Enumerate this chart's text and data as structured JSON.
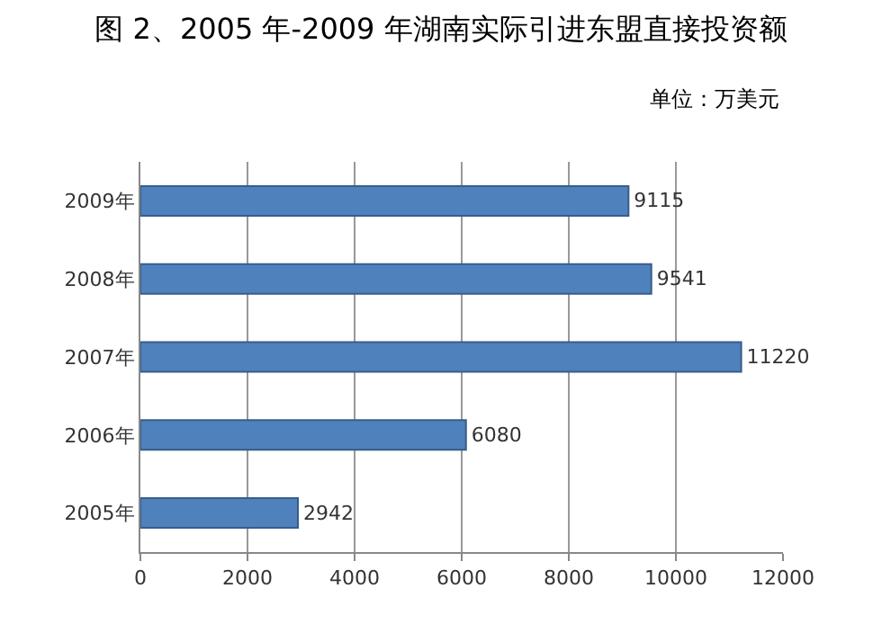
{
  "chart_data": {
    "type": "bar",
    "orientation": "horizontal",
    "title": "图 2、2005 年-2009 年湖南实际引进东盟直接投资额",
    "annotations": [
      "单位：万美元"
    ],
    "categories": [
      "2009年",
      "2008年",
      "2007年",
      "2006年",
      "2005年"
    ],
    "values": [
      9115,
      9541,
      11220,
      6080,
      2942
    ],
    "color": "#4f81bd",
    "xlim": [
      0,
      12000
    ],
    "xticks": [
      0,
      2000,
      4000,
      6000,
      8000,
      10000,
      12000
    ],
    "grid": "x",
    "data_labels": true
  }
}
